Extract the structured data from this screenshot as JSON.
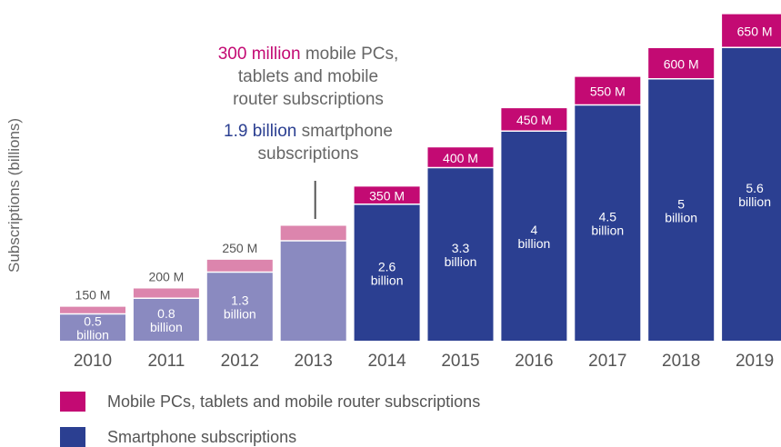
{
  "chart_data": {
    "type": "bar",
    "stacked": true,
    "title": "",
    "xlabel": "",
    "ylabel": "Subscriptions (billions)",
    "categories": [
      "2010",
      "2011",
      "2012",
      "2013",
      "2014",
      "2015",
      "2016",
      "2017",
      "2018",
      "2019"
    ],
    "series": [
      {
        "name": "Smartphone subscriptions",
        "values": [
          0.5,
          0.8,
          1.3,
          1.9,
          2.6,
          3.3,
          4.0,
          4.5,
          5.0,
          5.6
        ],
        "labels": [
          [
            "0.5",
            "billion"
          ],
          [
            "0.8",
            "billion"
          ],
          [
            "1.3",
            "billion"
          ],
          [],
          [
            "2.6",
            "billion"
          ],
          [
            "3.3",
            "billion"
          ],
          [
            "4",
            "billion"
          ],
          [
            "4.5",
            "billion"
          ],
          [
            "5",
            "billion"
          ],
          [
            "5.6",
            "billion"
          ]
        ]
      },
      {
        "name": "Mobile PCs, tablets and mobile router subscriptions",
        "values": [
          0.15,
          0.2,
          0.25,
          0.3,
          0.35,
          0.4,
          0.45,
          0.55,
          0.6,
          0.65
        ],
        "labels": [
          "150 M",
          "200 M",
          "250 M",
          "",
          "350 M",
          "400 M",
          "450 M",
          "550 M",
          "600 M",
          "650 M"
        ]
      }
    ],
    "highlight_years": [
      "2014",
      "2015",
      "2016",
      "2017",
      "2018",
      "2019"
    ],
    "colors": {
      "smartphone": "#2b3f91",
      "smartphone_light": "#8a8ac0",
      "mobile_pc": "#c30a73",
      "mobile_pc_light": "#dc85ad"
    },
    "legend_position": "bottom-left",
    "grid": false
  },
  "callout": {
    "line1_highlight": "300 million",
    "line1_rest": " mobile PCs,",
    "line2": "tablets and mobile",
    "line3": "router subscriptions",
    "line4_highlight": "1.9 billion",
    "line4_rest": " smartphone",
    "line5": "subscriptions"
  },
  "legend": [
    {
      "label": "Mobile PCs, tablets and mobile router subscriptions",
      "color": "#c30a73"
    },
    {
      "label": "Smartphone subscriptions",
      "color": "#2b3f91"
    }
  ]
}
